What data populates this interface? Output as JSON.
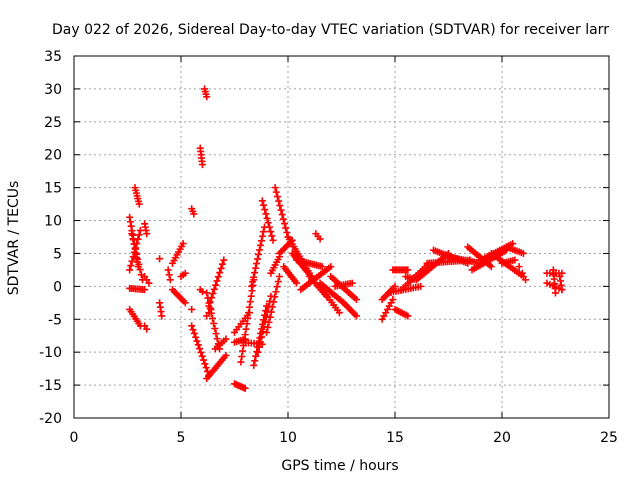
{
  "chart_data": {
    "type": "scatter",
    "title": "Day 022 of 2026, Sidereal Day-to-day VTEC variation (SDTVAR) for receiver larr",
    "xlabel": "GPS time / hours",
    "ylabel": "SDTVAR / TECUs",
    "xlim": [
      0,
      25
    ],
    "ylim": [
      -20,
      35
    ],
    "xticks": [
      0,
      5,
      10,
      15,
      20,
      25
    ],
    "yticks": [
      -20,
      -15,
      -10,
      -5,
      0,
      5,
      10,
      15,
      20,
      25,
      30,
      35
    ],
    "grid": true,
    "marker": "plus",
    "series_color": "#ff0000",
    "segments": [
      {
        "x0": 2.6,
        "x1": 3.0,
        "y0": 10.5,
        "y1": 3.0,
        "n": 12
      },
      {
        "x0": 2.7,
        "x1": 3.2,
        "y0": 8.0,
        "y1": 1.0,
        "n": 10
      },
      {
        "x0": 2.6,
        "x1": 3.1,
        "y0": 2.5,
        "y1": 8.5,
        "n": 10
      },
      {
        "x0": 2.85,
        "x1": 3.05,
        "y0": 15.0,
        "y1": 12.5,
        "n": 7
      },
      {
        "x0": 2.6,
        "x1": 3.3,
        "y0": -0.3,
        "y1": -0.5,
        "n": 9
      },
      {
        "x0": 2.6,
        "x1": 3.1,
        "y0": -3.5,
        "y1": -6.0,
        "n": 8
      },
      {
        "x0": 3.3,
        "x1": 3.4,
        "y0": 9.5,
        "y1": 8.0,
        "n": 4
      },
      {
        "x0": 3.3,
        "x1": 3.5,
        "y0": 1.5,
        "y1": 0.5,
        "n": 3
      },
      {
        "x0": 3.3,
        "x1": 3.4,
        "y0": -6.0,
        "y1": -6.5,
        "n": 2
      },
      {
        "x0": 4.0,
        "x1": 4.1,
        "y0": -2.5,
        "y1": -4.5,
        "n": 4
      },
      {
        "x0": 4.0,
        "x1": 4.1,
        "y0": 4.2,
        "y1": 4.2,
        "n": 1
      },
      {
        "x0": 4.4,
        "x1": 4.5,
        "y0": 2.5,
        "y1": 1.0,
        "n": 3
      },
      {
        "x0": 4.6,
        "x1": 5.1,
        "y0": 3.5,
        "y1": 6.5,
        "n": 8
      },
      {
        "x0": 4.6,
        "x1": 5.2,
        "y0": -0.5,
        "y1": -2.5,
        "n": 8
      },
      {
        "x0": 5.0,
        "x1": 5.2,
        "y0": 1.5,
        "y1": 2.0,
        "n": 3
      },
      {
        "x0": 5.5,
        "x1": 5.6,
        "y0": 11.8,
        "y1": 11.0,
        "n": 3
      },
      {
        "x0": 5.5,
        "x1": 5.6,
        "y0": -3.5,
        "y1": -3.5,
        "n": 1
      },
      {
        "x0": 5.5,
        "x1": 6.3,
        "y0": -6.0,
        "y1": -13.5,
        "n": 14
      },
      {
        "x0": 5.9,
        "x1": 6.0,
        "y0": 21.0,
        "y1": 18.5,
        "n": 6
      },
      {
        "x0": 6.1,
        "x1": 6.2,
        "y0": 30.0,
        "y1": 28.8,
        "n": 4
      },
      {
        "x0": 5.9,
        "x1": 6.0,
        "y0": -0.5,
        "y1": -0.8,
        "n": 2
      },
      {
        "x0": 6.2,
        "x1": 6.8,
        "y0": -1.0,
        "y1": -9.5,
        "n": 12
      },
      {
        "x0": 6.2,
        "x1": 6.4,
        "y0": -4.5,
        "y1": -3.5,
        "n": 3
      },
      {
        "x0": 6.3,
        "x1": 7.0,
        "y0": -3.0,
        "y1": 4.0,
        "n": 12
      },
      {
        "x0": 6.2,
        "x1": 7.1,
        "y0": -14.0,
        "y1": -10.5,
        "n": 12
      },
      {
        "x0": 6.6,
        "x1": 7.1,
        "y0": -9.5,
        "y1": -8.0,
        "n": 6
      },
      {
        "x0": 7.5,
        "x1": 8.0,
        "y0": -14.8,
        "y1": -15.5,
        "n": 8
      },
      {
        "x0": 7.5,
        "x1": 8.0,
        "y0": -8.5,
        "y1": -8.0,
        "n": 6
      },
      {
        "x0": 7.5,
        "x1": 8.2,
        "y0": -7.0,
        "y1": -4.0,
        "n": 8
      },
      {
        "x0": 7.8,
        "x1": 8.4,
        "y0": -11.5,
        "y1": 1.0,
        "n": 16
      },
      {
        "x0": 7.9,
        "x1": 8.8,
        "y0": -8.5,
        "y1": -8.8,
        "n": 8
      },
      {
        "x0": 8.3,
        "x1": 8.9,
        "y0": 0.0,
        "y1": 9.0,
        "n": 14
      },
      {
        "x0": 8.4,
        "x1": 9.0,
        "y0": -12.0,
        "y1": -3.0,
        "n": 14
      },
      {
        "x0": 8.6,
        "x1": 9.2,
        "y0": -10.0,
        "y1": -1.5,
        "n": 12
      },
      {
        "x0": 8.8,
        "x1": 9.3,
        "y0": 13.0,
        "y1": 7.0,
        "n": 10
      },
      {
        "x0": 9.0,
        "x1": 9.6,
        "y0": -7.0,
        "y1": 1.5,
        "n": 12
      },
      {
        "x0": 9.2,
        "x1": 9.6,
        "y0": 2.0,
        "y1": 4.5,
        "n": 7
      },
      {
        "x0": 9.4,
        "x1": 10.0,
        "y0": 15.0,
        "y1": 7.5,
        "n": 12
      },
      {
        "x0": 9.6,
        "x1": 10.2,
        "y0": 5.0,
        "y1": 7.0,
        "n": 10
      },
      {
        "x0": 9.8,
        "x1": 10.4,
        "y0": 3.0,
        "y1": 0.5,
        "n": 9
      },
      {
        "x0": 10.0,
        "x1": 11.0,
        "y0": 7.5,
        "y1": 2.0,
        "n": 16
      },
      {
        "x0": 10.2,
        "x1": 11.2,
        "y0": 5.0,
        "y1": 1.0,
        "n": 14
      },
      {
        "x0": 10.4,
        "x1": 11.6,
        "y0": 4.0,
        "y1": 3.0,
        "n": 14
      },
      {
        "x0": 10.6,
        "x1": 12.0,
        "y0": -0.5,
        "y1": 3.0,
        "n": 16
      },
      {
        "x0": 11.3,
        "x1": 11.5,
        "y0": 8.0,
        "y1": 7.2,
        "n": 3
      },
      {
        "x0": 11.0,
        "x1": 11.8,
        "y0": 1.5,
        "y1": -1.5,
        "n": 10
      },
      {
        "x0": 11.5,
        "x1": 12.6,
        "y0": 0.5,
        "y1": -2.5,
        "n": 14
      },
      {
        "x0": 11.6,
        "x1": 12.4,
        "y0": -0.5,
        "y1": -4.0,
        "n": 10
      },
      {
        "x0": 12.0,
        "x1": 13.2,
        "y0": 1.5,
        "y1": -2.0,
        "n": 14
      },
      {
        "x0": 12.2,
        "x1": 13.0,
        "y0": 0.0,
        "y1": 0.5,
        "n": 9
      },
      {
        "x0": 12.6,
        "x1": 13.2,
        "y0": -2.5,
        "y1": -4.5,
        "n": 8
      },
      {
        "x0": 14.4,
        "x1": 14.9,
        "y0": -5.0,
        "y1": -2.0,
        "n": 7
      },
      {
        "x0": 14.4,
        "x1": 15.0,
        "y0": -2.0,
        "y1": 0.0,
        "n": 8
      },
      {
        "x0": 14.9,
        "x1": 15.6,
        "y0": 2.5,
        "y1": 2.5,
        "n": 10
      },
      {
        "x0": 15.0,
        "x1": 15.6,
        "y0": -3.5,
        "y1": -4.5,
        "n": 8
      },
      {
        "x0": 14.7,
        "x1": 16.2,
        "y0": -1.0,
        "y1": 0.0,
        "n": 14
      },
      {
        "x0": 15.3,
        "x1": 16.6,
        "y0": -0.5,
        "y1": 3.5,
        "n": 14
      },
      {
        "x0": 15.5,
        "x1": 16.0,
        "y0": 1.5,
        "y1": 1.0,
        "n": 6
      },
      {
        "x0": 16.0,
        "x1": 17.5,
        "y0": 1.0,
        "y1": 5.0,
        "n": 18
      },
      {
        "x0": 16.5,
        "x1": 18.5,
        "y0": 3.5,
        "y1": 4.0,
        "n": 22
      },
      {
        "x0": 16.8,
        "x1": 18.4,
        "y0": 5.5,
        "y1": 3.5,
        "n": 18
      },
      {
        "x0": 17.5,
        "x1": 19.0,
        "y0": 4.5,
        "y1": 3.5,
        "n": 16
      },
      {
        "x0": 18.4,
        "x1": 19.5,
        "y0": 6.0,
        "y1": 3.0,
        "n": 14
      },
      {
        "x0": 18.6,
        "x1": 20.2,
        "y0": 2.5,
        "y1": 5.5,
        "n": 18
      },
      {
        "x0": 19.0,
        "x1": 20.5,
        "y0": 4.0,
        "y1": 6.5,
        "n": 16
      },
      {
        "x0": 19.5,
        "x1": 21.0,
        "y0": 5.0,
        "y1": 1.5,
        "n": 16
      },
      {
        "x0": 20.2,
        "x1": 21.0,
        "y0": 6.0,
        "y1": 5.0,
        "n": 9
      },
      {
        "x0": 20.0,
        "x1": 20.6,
        "y0": 3.5,
        "y1": 4.0,
        "n": 7
      },
      {
        "x0": 20.8,
        "x1": 21.1,
        "y0": 3.0,
        "y1": 1.0,
        "n": 3
      },
      {
        "x0": 22.1,
        "x1": 22.8,
        "y0": 2.0,
        "y1": 2.0,
        "n": 6
      },
      {
        "x0": 22.1,
        "x1": 22.8,
        "y0": 0.5,
        "y1": -0.5,
        "n": 6
      },
      {
        "x0": 22.4,
        "x1": 22.5,
        "y0": 2.5,
        "y1": -1.0,
        "n": 6
      },
      {
        "x0": 22.7,
        "x1": 22.8,
        "y0": 1.5,
        "y1": -0.5,
        "n": 4
      }
    ]
  }
}
